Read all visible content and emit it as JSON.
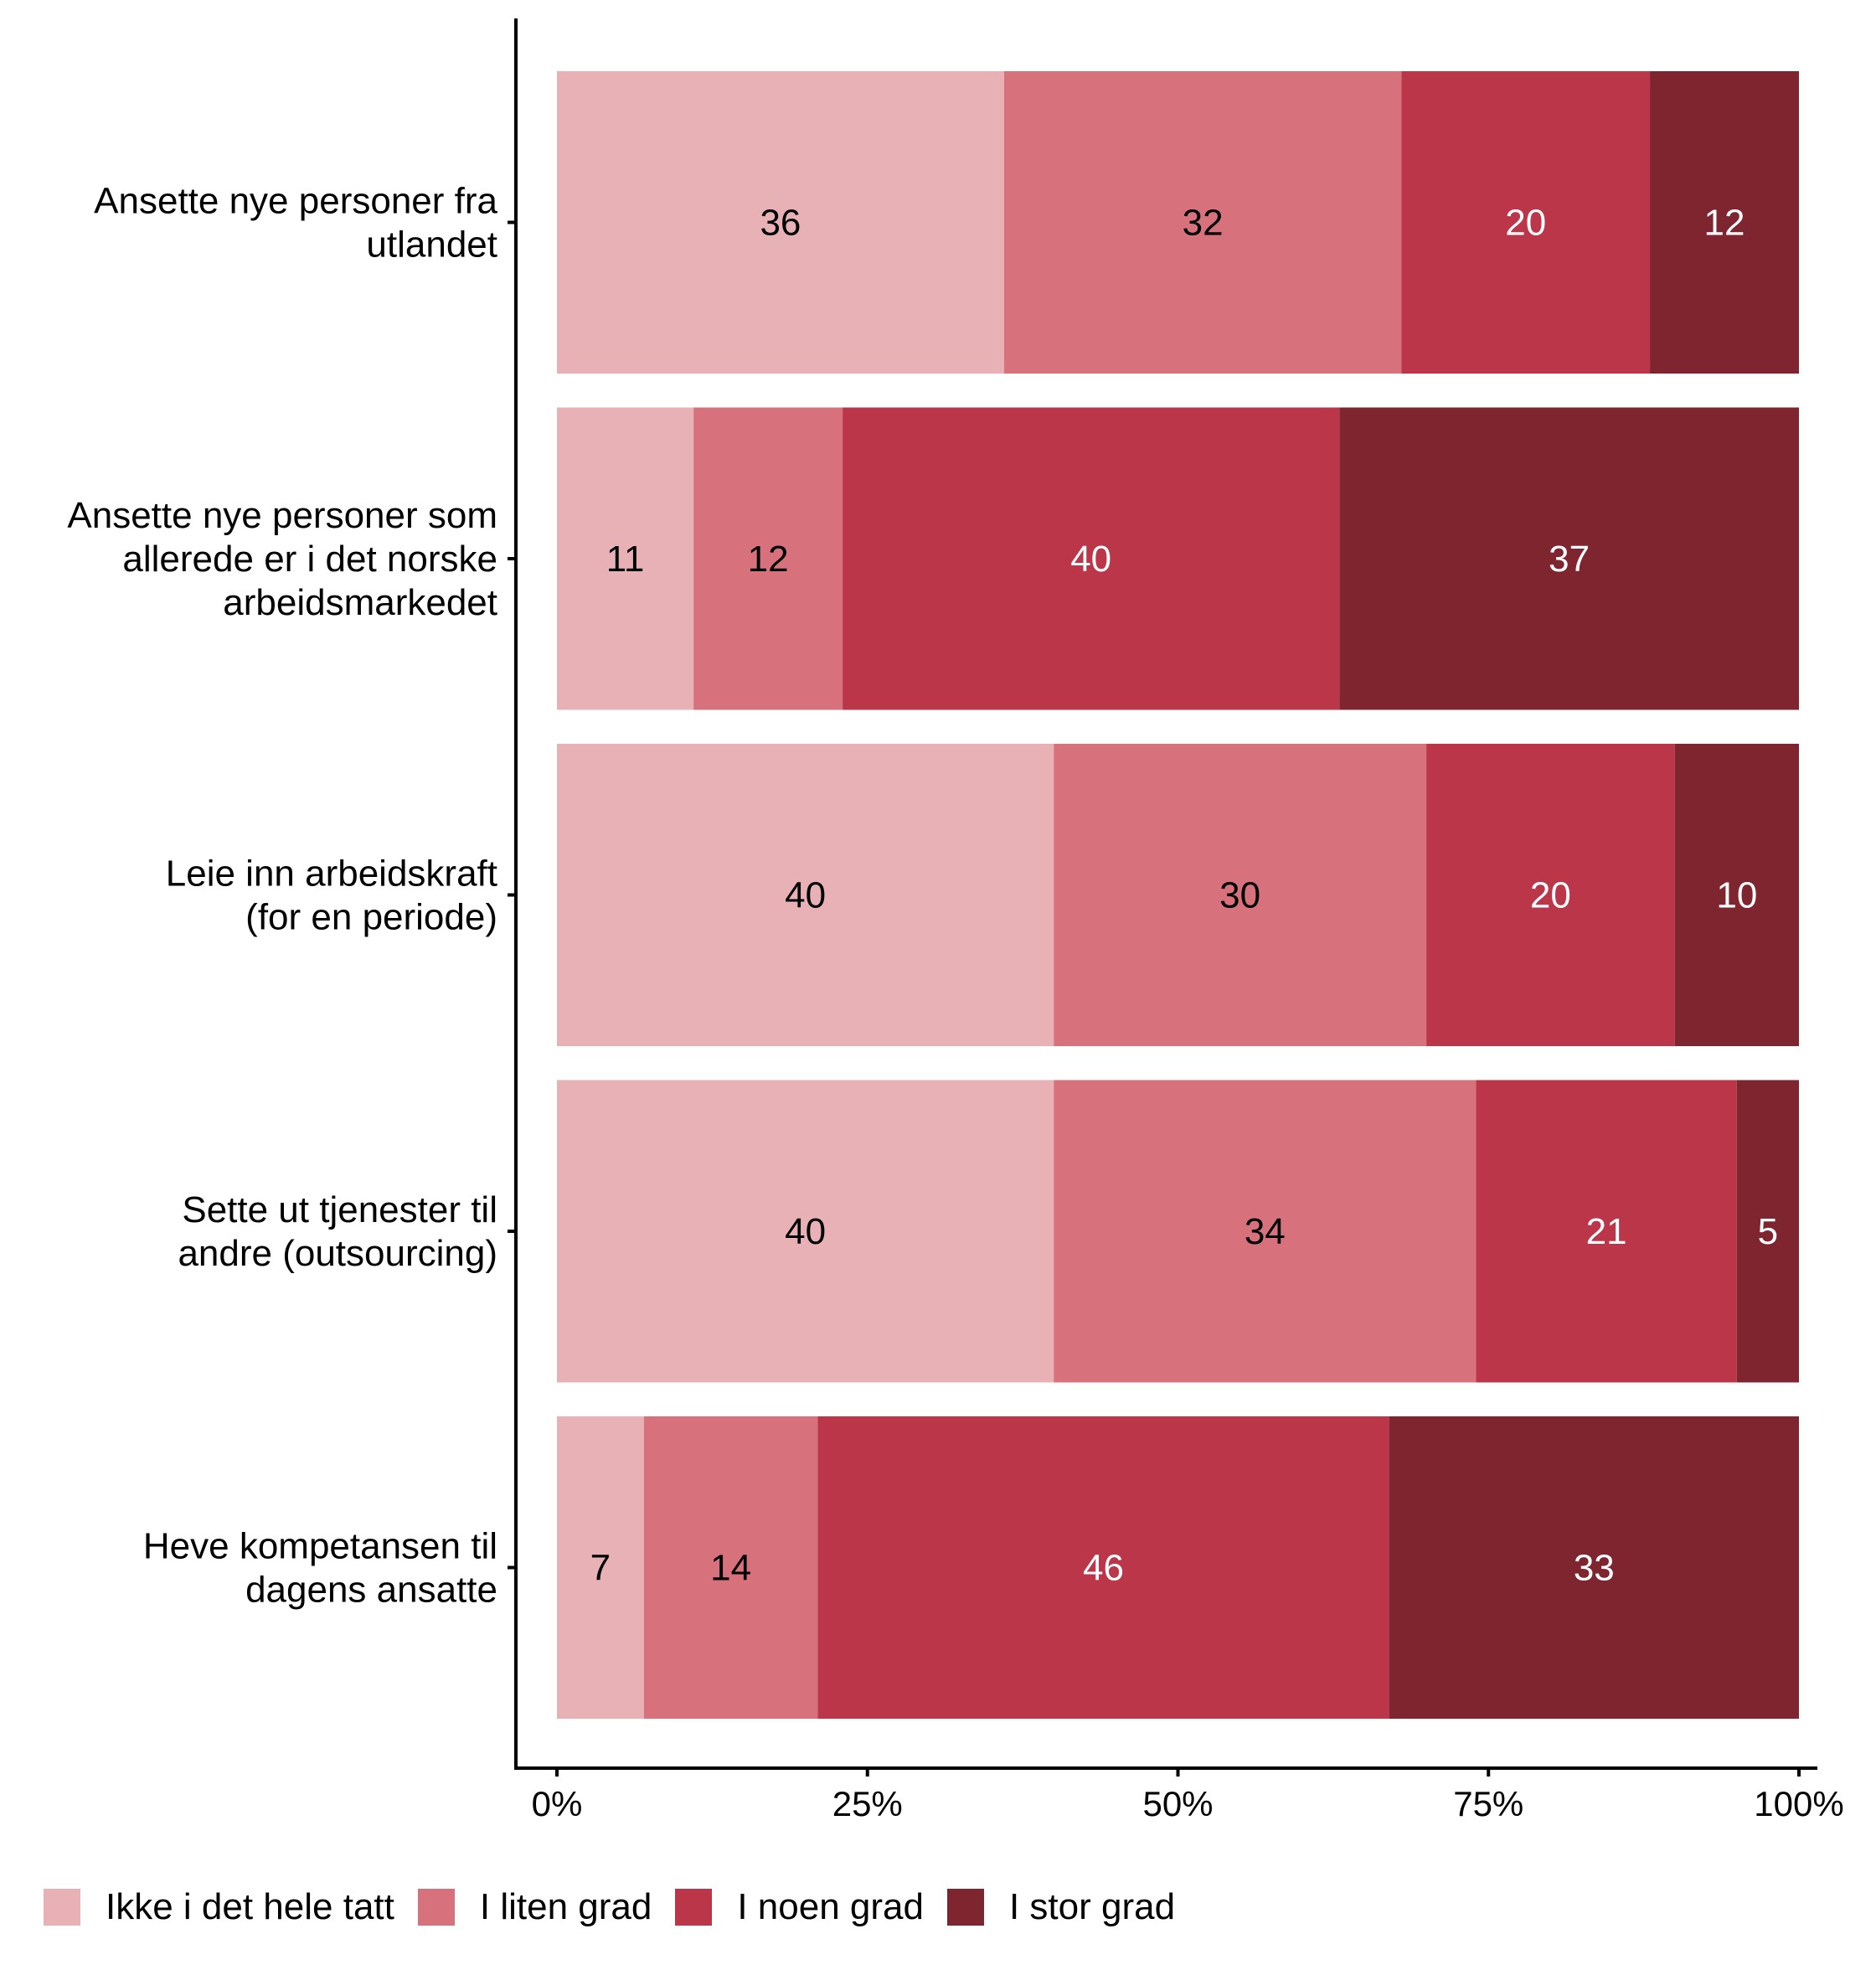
{
  "chart_data": {
    "type": "bar",
    "orientation": "horizontal",
    "stacked": true,
    "title": "",
    "xlabel": "",
    "ylabel": "",
    "xlim": [
      0,
      100
    ],
    "x_ticks": [
      "0%",
      "25%",
      "50%",
      "75%",
      "100%"
    ],
    "x_tick_values": [
      0,
      25,
      50,
      75,
      100
    ],
    "grid": false,
    "legend_position": "bottom-left",
    "categories": [
      [
        "Ansette nye personer fra",
        "utlandet"
      ],
      [
        "Ansette nye personer som",
        "allerede er i det norske",
        "arbeidsmarkedet"
      ],
      [
        "Leie inn arbeidskraft",
        "(for en periode)"
      ],
      [
        "Sette ut tjenester til",
        "andre (outsourcing)"
      ],
      [
        "Heve kompetansen til",
        "dagens ansatte"
      ]
    ],
    "series": [
      {
        "name": "Ikke i det hele tatt",
        "color": "#E8B1B6",
        "label_color": "#000000",
        "values": [
          36,
          11,
          40,
          40,
          7
        ]
      },
      {
        "name": "I liten grad",
        "color": "#D7717C",
        "label_color": "#000000",
        "values": [
          32,
          12,
          30,
          34,
          14
        ]
      },
      {
        "name": "I noen grad",
        "color": "#BC364A",
        "label_color": "#FFFFFF",
        "values": [
          20,
          40,
          20,
          21,
          46
        ]
      },
      {
        "name": "I stor grad",
        "color": "#7E2530",
        "label_color": "#FFFFFF",
        "values": [
          12,
          37,
          10,
          5,
          33
        ]
      }
    ]
  },
  "legend": {
    "items": [
      {
        "label": "Ikke i det hele tatt",
        "color": "#E8B1B6"
      },
      {
        "label": "I liten grad",
        "color": "#D7717C"
      },
      {
        "label": "I noen grad",
        "color": "#BC364A"
      },
      {
        "label": "I stor grad",
        "color": "#7E2530"
      }
    ]
  }
}
